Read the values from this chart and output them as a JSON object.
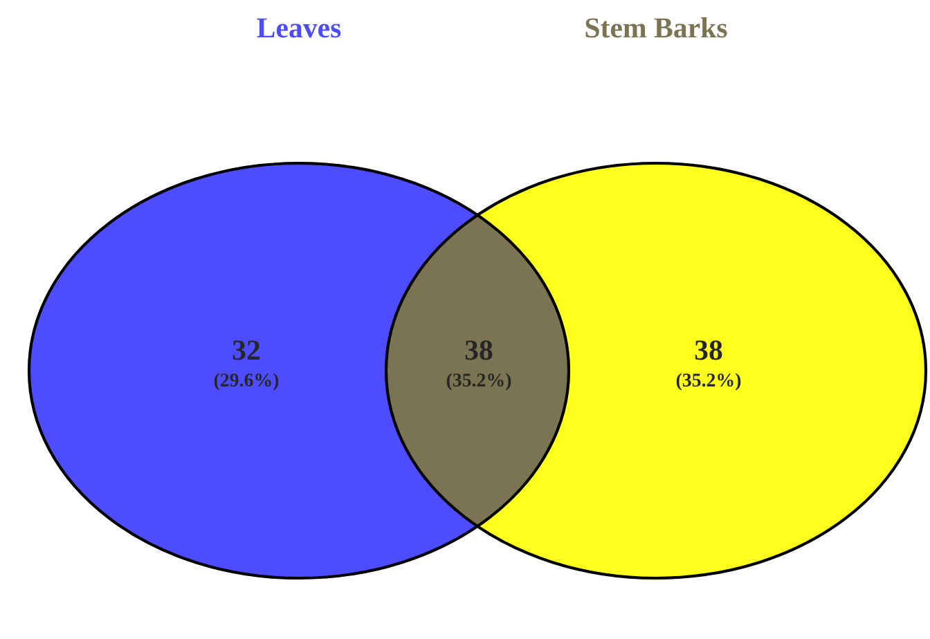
{
  "chart_data": {
    "type": "other",
    "categories": [
      "Leaves",
      null,
      "Stem Barks"
    ],
    "values": [
      32,
      38,
      38
    ],
    "data_labels": true,
    "annotations": [
      "(29.6%)",
      "(35.2%)",
      "(35.2%)"
    ],
    "colors": [
      "#4d4dff",
      "#7b7452",
      "#ffff1e"
    ]
  }
}
